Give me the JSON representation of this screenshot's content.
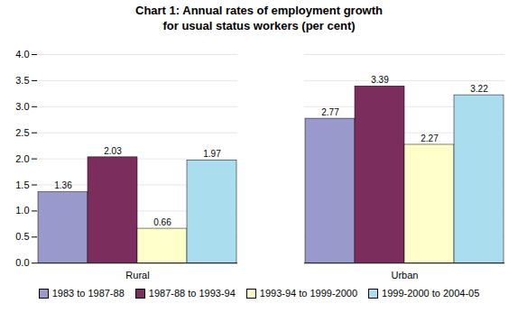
{
  "chart_data": {
    "type": "bar",
    "title": "Chart 1: Annual rates of employment growth\nfor usual status workers (per cent)",
    "categories": [
      "Rural",
      "Urban"
    ],
    "series": [
      {
        "name": "1983 to 1987-88",
        "color": "#9999CC",
        "values": [
          1.36,
          2.77
        ]
      },
      {
        "name": "1987-88 to 1993-94",
        "color": "#7B2D5E",
        "values": [
          2.03,
          3.39
        ]
      },
      {
        "name": "1993-94 to 1999-2000",
        "color": "#FFFFCC",
        "values": [
          0.66,
          2.27
        ]
      },
      {
        "name": "1999-2000 to 2004-05",
        "color": "#AADDEE",
        "values": [
          1.97,
          3.22
        ]
      }
    ],
    "ylim": [
      0,
      4
    ],
    "yticks": [
      {
        "value": 0,
        "label": "0.0"
      },
      0.5,
      {
        "value": 1,
        "label": "1.0"
      },
      1.5,
      {
        "value": 2,
        "label": "2.0"
      },
      2.5,
      {
        "value": 3,
        "label": "3.0"
      },
      3.5,
      {
        "value": 4,
        "label": "4.0"
      }
    ],
    "grid": true,
    "data_labels": true,
    "legend": "bottom"
  }
}
